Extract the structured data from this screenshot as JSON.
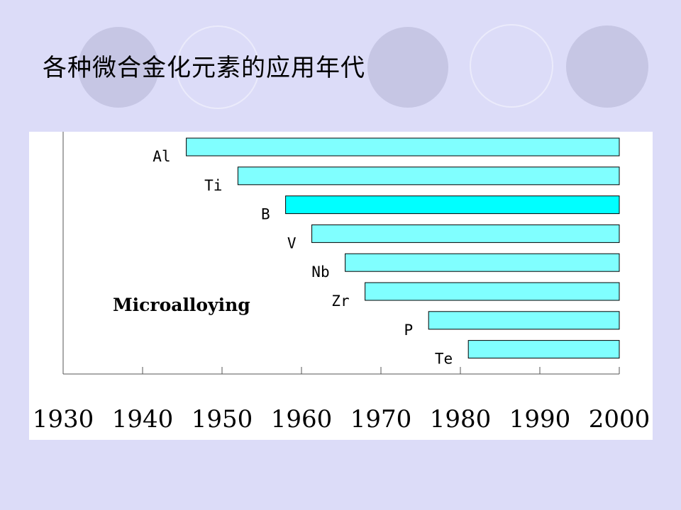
{
  "slide": {
    "title": "各种微合金化元素的应用年代",
    "background_color": "#dcdcf8",
    "circle_color": "#c6c6e4"
  },
  "chart_data": {
    "type": "bar",
    "orientation": "horizontal",
    "annotation": "Microalloying",
    "x_ticks": [
      "1930",
      "1940",
      "1950",
      "1960",
      "1970",
      "1980",
      "1990",
      "2000"
    ],
    "xlim": [
      1930,
      2000
    ],
    "grid": false,
    "legend": "none",
    "bar_color": "#80ffff",
    "highlight_color": "#00ffff",
    "series": [
      {
        "label": "Al",
        "start": 1945.5,
        "end": 2000
      },
      {
        "label": "Ti",
        "start": 1952,
        "end": 2000
      },
      {
        "label": "B",
        "start": 1958,
        "end": 2000,
        "highlight": true
      },
      {
        "label": "V",
        "start": 1961.3,
        "end": 2000
      },
      {
        "label": "Nb",
        "start": 1965.5,
        "end": 2000
      },
      {
        "label": "Zr",
        "start": 1968,
        "end": 2000
      },
      {
        "label": "P",
        "start": 1976,
        "end": 2000
      },
      {
        "label": "Te",
        "start": 1981,
        "end": 2000
      }
    ]
  }
}
